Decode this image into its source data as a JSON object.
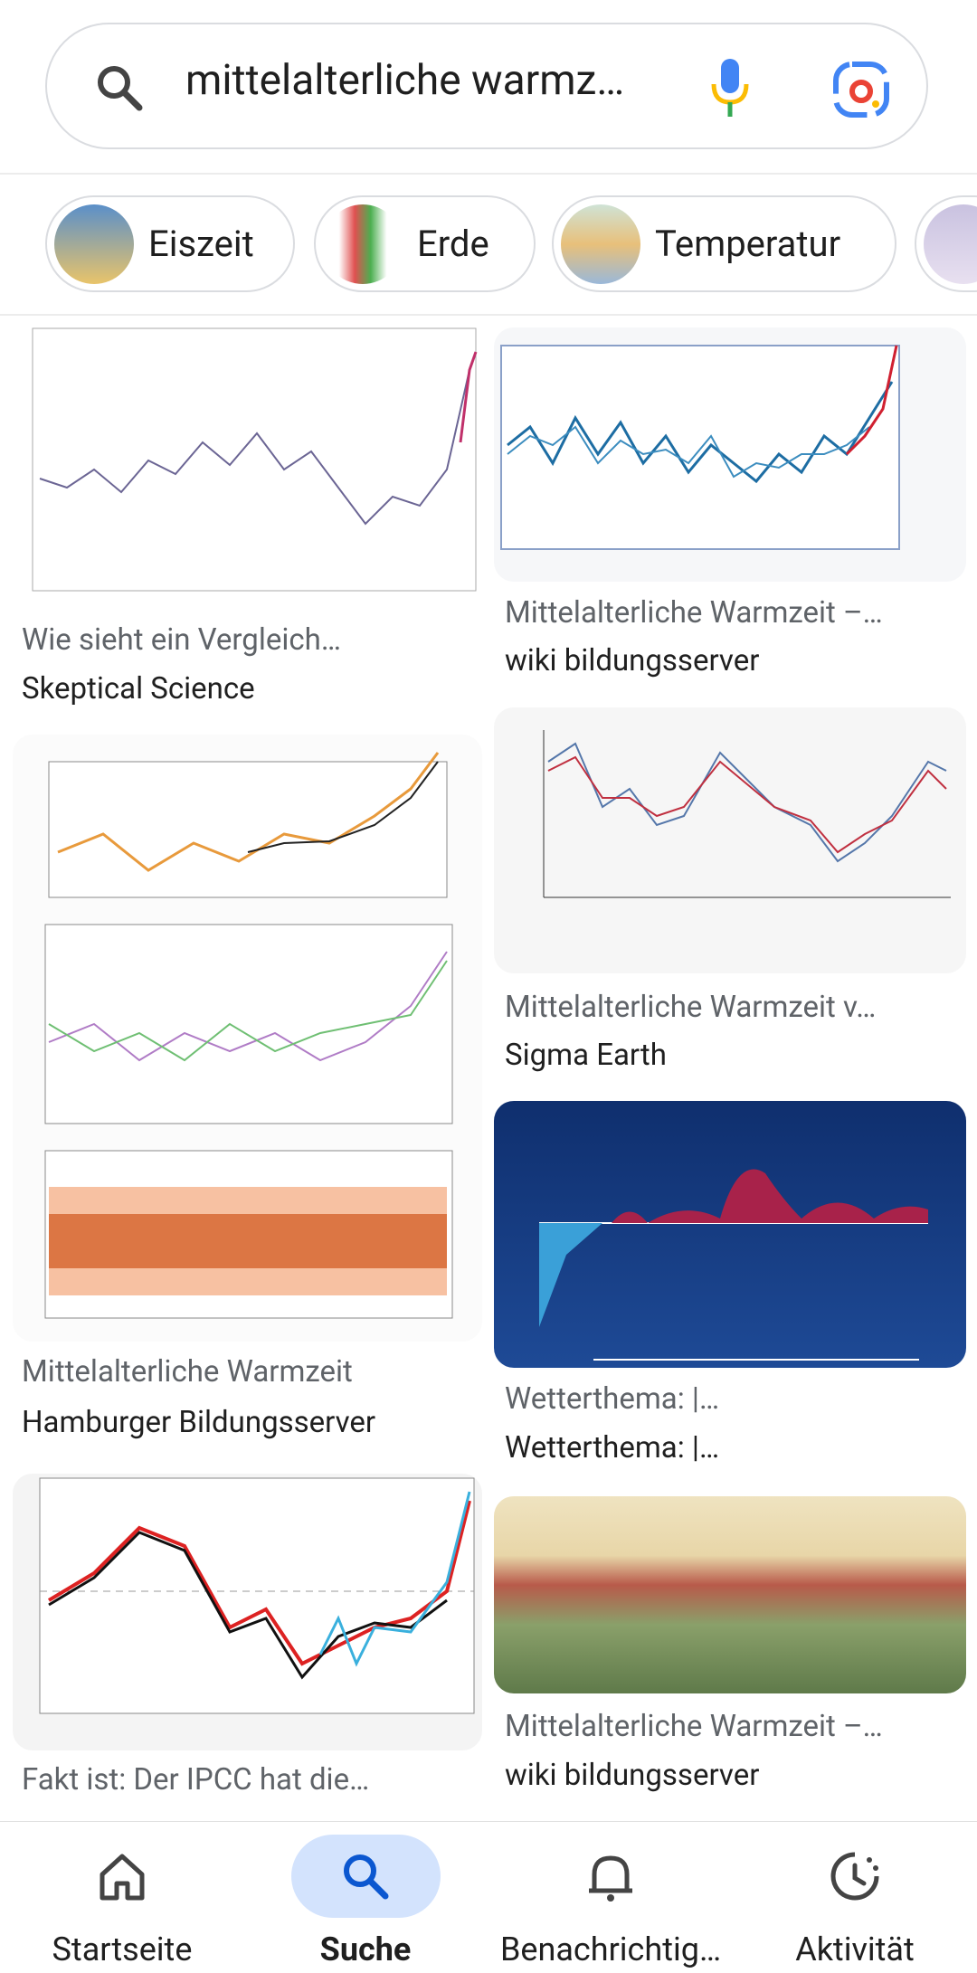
{
  "search": {
    "query": "mittelalterliche warmz…"
  },
  "chips": [
    "Eiszeit",
    "Erde",
    "Temperatur"
  ],
  "results": [
    {
      "title": "Wie sieht ein Vergleich…",
      "source": "Skeptical Science"
    },
    {
      "title": "Mittelalterliche Warmzeit –…",
      "source": "wiki bildungsserver"
    },
    {
      "title": "Mittelalterliche Warmzeit",
      "source": "Hamburger Bildungsserver"
    },
    {
      "title": "Mittelalterliche Warmzeit v…",
      "source": "Sigma Earth"
    },
    {
      "title": "Fakt ist: Der IPCC hat die…",
      "source": ""
    },
    {
      "title": "Wetterthema: |…",
      "source": "Wetterthema: |…"
    },
    {
      "title": "Mittelalterliche Warmzeit –…",
      "source": "wiki bildungsserver"
    }
  ],
  "nav": [
    "Startseite",
    "Suche",
    "Benachrichtig…",
    "Aktivität"
  ]
}
